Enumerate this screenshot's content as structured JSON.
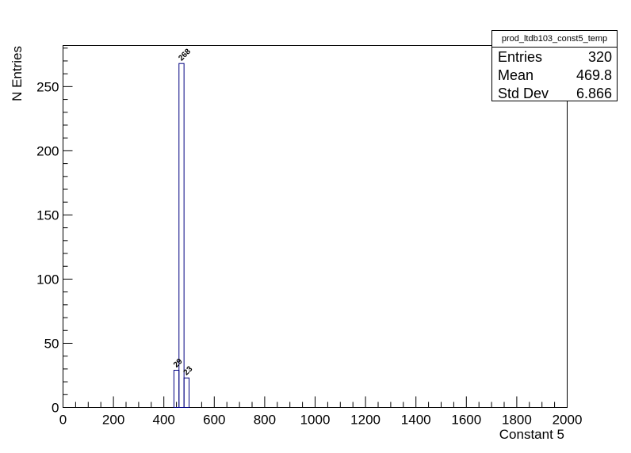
{
  "stats": {
    "title": "prod_ltdb103_const5_temp",
    "rows": [
      {
        "label": "Entries",
        "value": "320"
      },
      {
        "label": "Mean",
        "value": "469.8"
      },
      {
        "label": "Std Dev",
        "value": "6.866"
      }
    ]
  },
  "chart_data": {
    "type": "bar",
    "xlabel": "Constant 5",
    "ylabel": "N Entries",
    "xlim": [
      0,
      2000
    ],
    "ylim": [
      0,
      282
    ],
    "x_ticks": [
      0,
      200,
      400,
      600,
      800,
      1000,
      1200,
      1400,
      1600,
      1800,
      2000
    ],
    "y_ticks": [
      0,
      50,
      100,
      150,
      200,
      250
    ],
    "bin_width": 20,
    "bins": [
      {
        "x_low": 440,
        "x_high": 460,
        "value": 29
      },
      {
        "x_low": 460,
        "x_high": 480,
        "value": 268
      },
      {
        "x_low": 480,
        "x_high": 500,
        "value": 23
      }
    ],
    "line_color": "#000080",
    "grid": false
  }
}
